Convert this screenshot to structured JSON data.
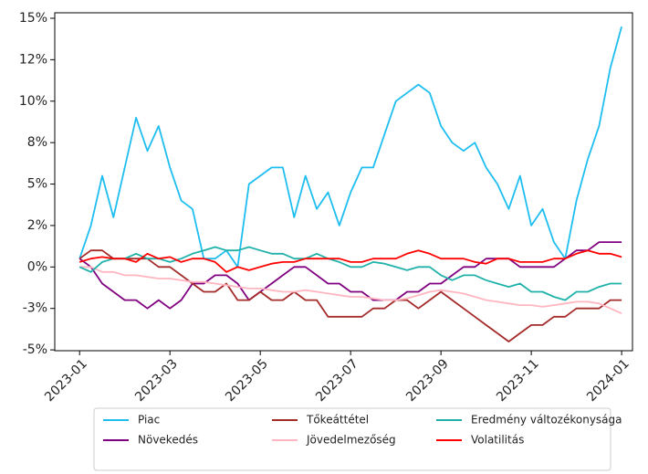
{
  "chart_data": {
    "type": "line",
    "x": [
      0,
      0.25,
      0.5,
      0.75,
      1,
      1.25,
      1.5,
      1.75,
      2,
      2.25,
      2.5,
      2.75,
      3,
      3.25,
      3.5,
      3.75,
      4,
      4.25,
      4.5,
      4.75,
      5,
      5.25,
      5.5,
      5.75,
      6,
      6.25,
      6.5,
      6.75,
      7,
      7.25,
      7.5,
      7.75,
      8,
      8.25,
      8.5,
      8.75,
      9,
      9.25,
      9.5,
      9.75,
      10,
      10.25,
      10.5,
      10.75,
      11,
      11.25,
      11.5,
      11.75,
      12
    ],
    "xlim": [
      -0.55,
      12.24
    ],
    "xticks": [
      {
        "value": 0,
        "label": "2023-01"
      },
      {
        "value": 2,
        "label": "2023-03"
      },
      {
        "value": 4,
        "label": "2023-05"
      },
      {
        "value": 6,
        "label": "2023-07"
      },
      {
        "value": 8,
        "label": "2023-09"
      },
      {
        "value": 10,
        "label": "2023-11"
      },
      {
        "value": 12,
        "label": "2024-01"
      }
    ],
    "ylim": [
      -5.05,
      15.33
    ],
    "yticks": [
      {
        "value": -5,
        "label": "-5%"
      },
      {
        "value": -2.5,
        "label": "-3%"
      },
      {
        "value": 0,
        "label": "0%"
      },
      {
        "value": 2.5,
        "label": "2%"
      },
      {
        "value": 5,
        "label": "5%"
      },
      {
        "value": 7.5,
        "label": "8%"
      },
      {
        "value": 10,
        "label": "10%"
      },
      {
        "value": 12.5,
        "label": "12%"
      },
      {
        "value": 15,
        "label": "15%"
      }
    ],
    "series": [
      {
        "name": "Piac",
        "color": "#1ebef0",
        "values": [
          0.5,
          2.5,
          5.5,
          3,
          6,
          9,
          7,
          8.5,
          6,
          4,
          3.5,
          0.5,
          0.5,
          1,
          0,
          5,
          5.5,
          6,
          6,
          3,
          5.5,
          3.5,
          4.5,
          2.5,
          4.5,
          6,
          6,
          8,
          10,
          10.5,
          11,
          10.5,
          8.5,
          7.5,
          7,
          7.5,
          6,
          5,
          3.5,
          5.5,
          2.5,
          3.5,
          1.5,
          0.5,
          4,
          6.5,
          8.5,
          12,
          14.5
        ]
      },
      {
        "name": "Növekedés",
        "color": "#800080",
        "values": [
          0.5,
          0,
          -1,
          -1.5,
          -2,
          -2,
          -2.5,
          -2,
          -2.5,
          -2,
          -1,
          -1,
          -0.5,
          -0.5,
          -1,
          -2,
          -1.5,
          -1,
          -0.5,
          0,
          0,
          -0.5,
          -1,
          -1,
          -1.5,
          -1.5,
          -2,
          -2,
          -2,
          -1.5,
          -1.5,
          -1,
          -1,
          -0.5,
          0,
          0,
          0.5,
          0.5,
          0.5,
          0,
          0,
          0,
          0,
          0.5,
          1,
          1,
          1.5,
          1.5,
          1.5
        ]
      },
      {
        "name": "Tőkeáttétel",
        "color": "#a52a2a",
        "values": [
          0.5,
          1,
          1,
          0.5,
          0.5,
          0.5,
          0.5,
          0,
          0,
          -0.5,
          -1,
          -1.5,
          -1.5,
          -1,
          -2,
          -2,
          -1.5,
          -2,
          -2,
          -1.5,
          -2,
          -2,
          -3,
          -3,
          -3,
          -3,
          -2.5,
          -2.5,
          -2,
          -2,
          -2.5,
          -2,
          -1.5,
          -2,
          -2.5,
          -3,
          -3.5,
          -4,
          -4.5,
          -4,
          -3.5,
          -3.5,
          -3,
          -3,
          -2.5,
          -2.5,
          -2.5,
          -2,
          -2
        ]
      },
      {
        "name": "Jövedelmezőség",
        "color": "#ffb6c1",
        "values": [
          0,
          0,
          -0.3,
          -0.3,
          -0.5,
          -0.5,
          -0.6,
          -0.7,
          -0.7,
          -0.8,
          -0.9,
          -0.9,
          -1,
          -1.1,
          -1.2,
          -1.3,
          -1.3,
          -1.4,
          -1.5,
          -1.5,
          -1.4,
          -1.5,
          -1.6,
          -1.7,
          -1.8,
          -1.8,
          -1.9,
          -2,
          -2,
          -1.9,
          -1.7,
          -1.5,
          -1.4,
          -1.5,
          -1.6,
          -1.8,
          -2,
          -2.1,
          -2.2,
          -2.3,
          -2.3,
          -2.4,
          -2.3,
          -2.2,
          -2.1,
          -2.1,
          -2.2,
          -2.5,
          -2.8
        ]
      },
      {
        "name": "Eredmény változékonysága",
        "color": "#20b2aa",
        "values": [
          0,
          -0.3,
          0.3,
          0.5,
          0.5,
          0.8,
          0.5,
          0.5,
          0.3,
          0.5,
          0.8,
          1,
          1.2,
          1,
          1,
          1.2,
          1,
          0.8,
          0.8,
          0.5,
          0.5,
          0.8,
          0.5,
          0.3,
          0,
          0,
          0.3,
          0.2,
          0,
          -0.2,
          0,
          0,
          -0.5,
          -0.8,
          -0.5,
          -0.5,
          -0.8,
          -1,
          -1.2,
          -1,
          -1.5,
          -1.5,
          -1.8,
          -2,
          -1.5,
          -1.5,
          -1.2,
          -1,
          -1
        ]
      },
      {
        "name": "Volatilitás",
        "color": "#ff0000",
        "values": [
          0.3,
          0.5,
          0.6,
          0.5,
          0.5,
          0.3,
          0.8,
          0.5,
          0.6,
          0.3,
          0.5,
          0.5,
          0.3,
          -0.3,
          0,
          -0.2,
          0,
          0.2,
          0.3,
          0.3,
          0.5,
          0.5,
          0.5,
          0.5,
          0.3,
          0.3,
          0.5,
          0.5,
          0.5,
          0.8,
          1,
          0.8,
          0.5,
          0.5,
          0.5,
          0.3,
          0.2,
          0.5,
          0.5,
          0.3,
          0.3,
          0.3,
          0.5,
          0.5,
          0.8,
          1,
          0.8,
          0.8,
          0.6
        ]
      }
    ],
    "legend": "lower center"
  }
}
